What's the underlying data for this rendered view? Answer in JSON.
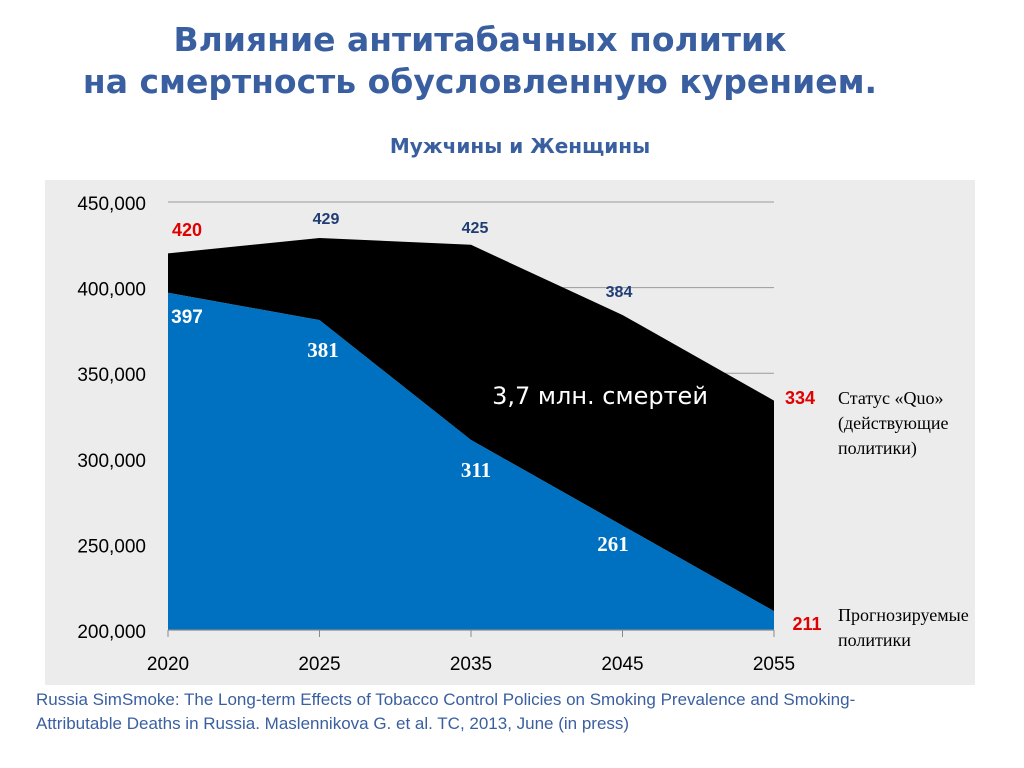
{
  "title": {
    "line1": "Влияние антитабачных политик",
    "line2": "на смертность обусловленную курением."
  },
  "subtitle": "Мужчины и Женщины",
  "footer": {
    "line1": "Russia SimSmoke:  The Long-term Effects of Tobacco Control Policies on Smoking Prevalence and Smoking-",
    "line2": "Attributable Deaths in Russia.  Maslennikova  G. et al. TC, 2013, June (in press)"
  },
  "colors": {
    "status_quo_fill": "#000000",
    "policy_fill": "#0070c0",
    "endpoint_label": "#e00000",
    "status_quo_label": "#1f3d73",
    "title": "#3a5fa0"
  },
  "chart_data": {
    "type": "area",
    "x": [
      "2020",
      "2025",
      "2035",
      "2045",
      "2055"
    ],
    "ylim": [
      200000,
      450000
    ],
    "y_ticks": [
      200000,
      250000,
      300000,
      350000,
      400000,
      450000
    ],
    "y_tick_labels": [
      "200,000",
      "250,000",
      "300,000",
      "350,000",
      "400,000",
      "450,000"
    ],
    "grid": true,
    "series": [
      {
        "key": "status_quo",
        "values": [
          420000,
          429000,
          425000,
          384000,
          334000
        ],
        "labels": [
          "420",
          "429",
          "425",
          "384",
          "334"
        ]
      },
      {
        "key": "policies",
        "values": [
          397000,
          381000,
          311000,
          261000,
          211000
        ],
        "labels": [
          "397",
          "381",
          "311",
          "261",
          "211"
        ]
      }
    ],
    "annotation": "3,7 млн. смертей",
    "legend": {
      "status_quo": [
        "Статус «Quo»",
        "(действующие",
        "политики)"
      ],
      "policies": [
        "Прогнозируемые",
        "политики"
      ]
    }
  }
}
